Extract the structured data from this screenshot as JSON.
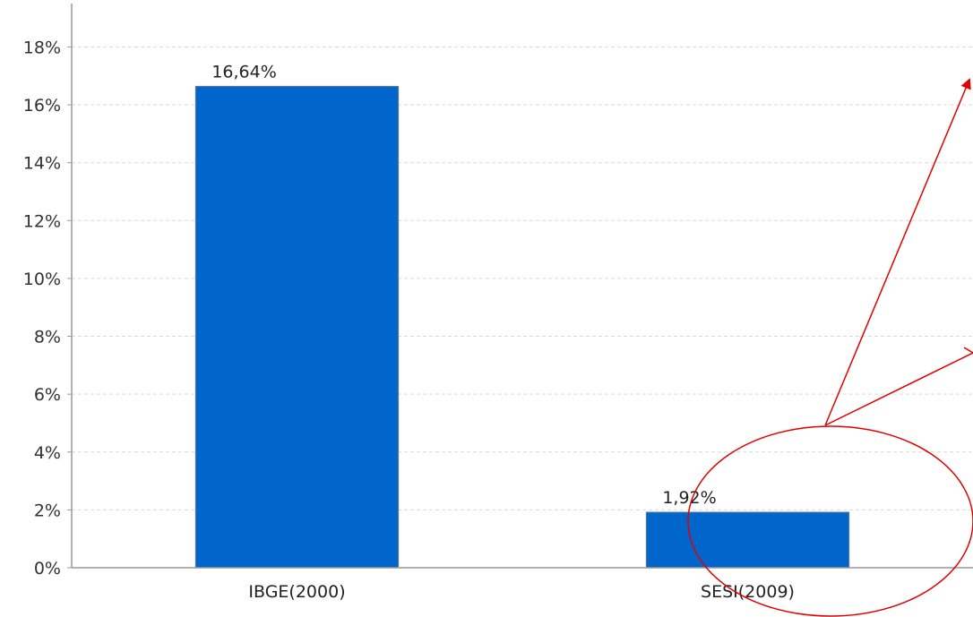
{
  "chart_data": {
    "type": "bar",
    "title": "",
    "xlabel": "",
    "ylabel": "",
    "categories": [
      "IBGE(2000)",
      "SESI(2009)"
    ],
    "values": [
      16.64,
      1.92
    ],
    "data_labels": [
      "16,64%",
      "1,92%"
    ],
    "ylim": [
      0,
      19.5
    ],
    "yticks": [
      0,
      2,
      4,
      6,
      8,
      10,
      12,
      14,
      16,
      18
    ],
    "ytick_labels": [
      "0%",
      "2%",
      "4%",
      "6%",
      "8%",
      "10%",
      "12%",
      "14%",
      "16%",
      "18%"
    ],
    "grid": true,
    "legend": "none",
    "colors": {
      "bar": "#0066cc",
      "bar_border": "#6a7a8a",
      "grid": "#d9d9d9",
      "axis": "#999999",
      "annotation": "#e00000"
    }
  }
}
